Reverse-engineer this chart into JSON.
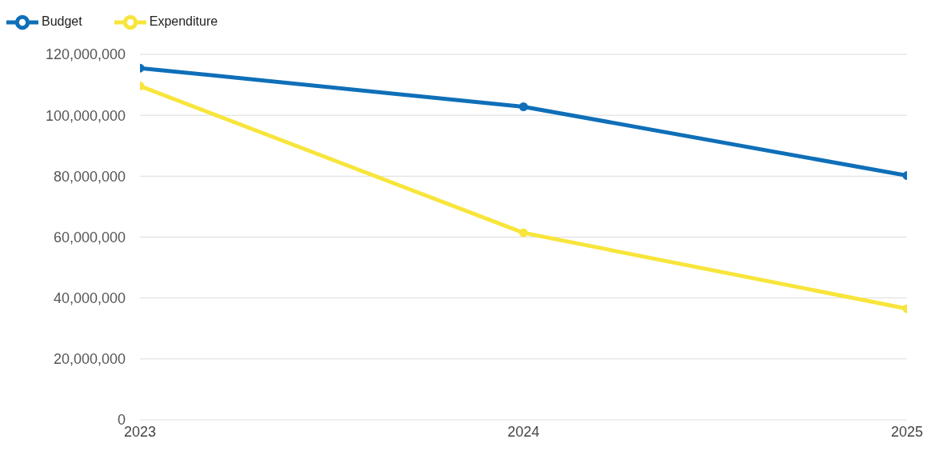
{
  "chart_data": {
    "type": "line",
    "categories": [
      "2023",
      "2024",
      "2025"
    ],
    "series": [
      {
        "name": "Budget",
        "color": "#0f6fb8",
        "values": [
          115500000,
          102800000,
          80200000
        ]
      },
      {
        "name": "Expenditure",
        "color": "#f7e53b",
        "values": [
          109600000,
          61400000,
          36500000
        ]
      }
    ],
    "ylim": [
      0,
      120000000
    ],
    "yticks": [
      0,
      {
        "value": 20000000,
        "label": "20,000,000"
      },
      {
        "value": 40000000,
        "label": "40,000,000"
      },
      {
        "value": 60000000,
        "label": "60,000,000"
      },
      {
        "value": 80000000,
        "label": "80,000,000"
      },
      {
        "value": 100000000,
        "label": "100,000,000"
      },
      {
        "value": 120000000,
        "label": "120,000,000"
      }
    ],
    "grid": "y",
    "legend": "top left",
    "marker": "circle",
    "line_style": "solid"
  }
}
